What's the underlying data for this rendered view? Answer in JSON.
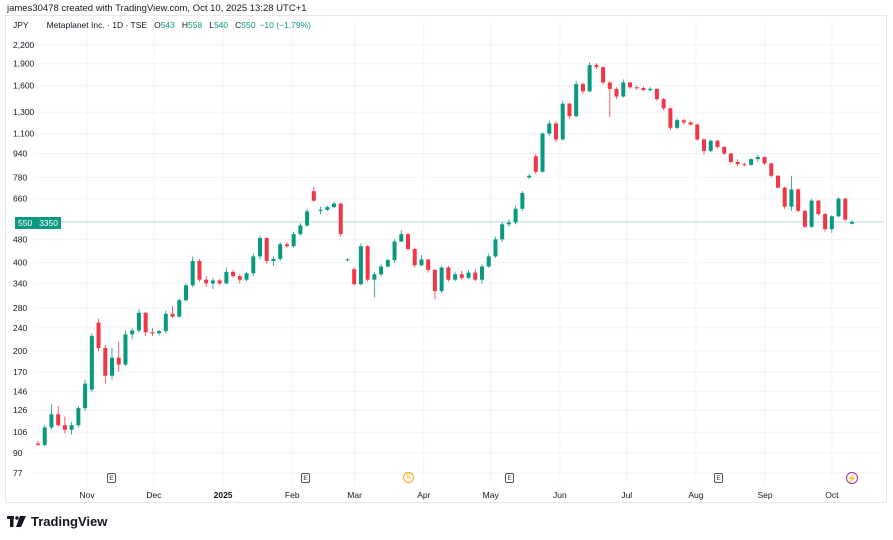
{
  "credit": "james30478 created with TradingView.com, Oct 10, 2025 13:28 UTC+1",
  "legend": {
    "currency": "JPY",
    "symbol": "Metaplanet Inc. · 1D · TSE",
    "o_label": "O",
    "o": "543",
    "h_label": "H",
    "h": "558",
    "l_label": "L",
    "l": "540",
    "c_label": "C",
    "c": "550",
    "change": "−10 (−1.79%)"
  },
  "price_label": {
    "price": "550",
    "countdown": "3350"
  },
  "colors": {
    "up": "#089981",
    "down": "#f23645",
    "grid": "#f0f3fa",
    "last_price_line": "#089981"
  },
  "markers": {
    "earnings_label": "E",
    "split_label": "S",
    "split_icon": "split-coin-icon",
    "now_icon": "lightning-icon"
  },
  "brand": "TradingView",
  "chart_data": {
    "type": "candlestick",
    "x_range": [
      "2024-10-10",
      "2025-10-10"
    ],
    "y_scale": "log",
    "ylim": [
      77,
      2200
    ],
    "grid": true,
    "yticks": [
      2200,
      1900,
      1600,
      1300,
      1100,
      940,
      780,
      660,
      480,
      400,
      340,
      280,
      240,
      200,
      170,
      146,
      126,
      106,
      90,
      77
    ],
    "xticks": [
      {
        "label": "Nov",
        "date": "2024-11-01"
      },
      {
        "label": "Dec",
        "date": "2024-12-01"
      },
      {
        "label": "2025",
        "date": "2025-01-01"
      },
      {
        "label": "Feb",
        "date": "2025-02-01"
      },
      {
        "label": "Mar",
        "date": "2025-03-01"
      },
      {
        "label": "Apr",
        "date": "2025-04-01"
      },
      {
        "label": "May",
        "date": "2025-05-01"
      },
      {
        "label": "Jun",
        "date": "2025-06-01"
      },
      {
        "label": "Jul",
        "date": "2025-07-01"
      },
      {
        "label": "Aug",
        "date": "2025-08-01"
      },
      {
        "label": "Sep",
        "date": "2025-09-01"
      },
      {
        "label": "Oct",
        "date": "2025-10-01"
      }
    ],
    "last_price": 550,
    "candles_ohlc": [
      [
        97,
        99,
        95,
        96
      ],
      [
        96,
        112,
        95,
        110
      ],
      [
        110,
        132,
        108,
        122
      ],
      [
        122,
        130,
        110,
        112
      ],
      [
        112,
        120,
        105,
        108
      ],
      [
        108,
        115,
        104,
        112
      ],
      [
        112,
        130,
        110,
        128
      ],
      [
        128,
        160,
        125,
        155
      ],
      [
        148,
        230,
        145,
        225
      ],
      [
        250,
        258,
        200,
        205
      ],
      [
        205,
        210,
        155,
        165
      ],
      [
        165,
        205,
        160,
        190
      ],
      [
        190,
        215,
        170,
        180
      ],
      [
        180,
        235,
        178,
        228
      ],
      [
        228,
        240,
        220,
        235
      ],
      [
        235,
        278,
        232,
        270
      ],
      [
        270,
        272,
        225,
        232
      ],
      [
        232,
        240,
        225,
        230
      ],
      [
        230,
        236,
        226,
        234
      ],
      [
        234,
        275,
        230,
        268
      ],
      [
        268,
        285,
        260,
        262
      ],
      [
        262,
        302,
        260,
        298
      ],
      [
        298,
        340,
        295,
        335
      ],
      [
        335,
        420,
        330,
        405
      ],
      [
        405,
        412,
        345,
        350
      ],
      [
        350,
        360,
        330,
        340
      ],
      [
        340,
        355,
        325,
        348
      ],
      [
        348,
        352,
        335,
        340
      ],
      [
        340,
        385,
        338,
        372
      ],
      [
        372,
        378,
        355,
        360
      ],
      [
        360,
        365,
        340,
        350
      ],
      [
        350,
        372,
        345,
        368
      ],
      [
        368,
        430,
        360,
        420
      ],
      [
        420,
        495,
        410,
        485
      ],
      [
        485,
        488,
        395,
        405
      ],
      [
        405,
        420,
        390,
        412
      ],
      [
        412,
        470,
        405,
        462
      ],
      [
        462,
        470,
        450,
        455
      ],
      [
        455,
        510,
        450,
        500
      ],
      [
        500,
        545,
        495,
        535
      ],
      [
        535,
        610,
        530,
        598
      ],
      [
        700,
        725,
        645,
        650
      ],
      [
        600,
        620,
        585,
        605
      ],
      [
        605,
        625,
        600,
        618
      ],
      [
        618,
        645,
        612,
        635
      ],
      [
        635,
        640,
        490,
        500
      ],
      [
        410,
        415,
        405,
        410
      ],
      [
        380,
        385,
        335,
        338
      ],
      [
        338,
        465,
        335,
        455
      ],
      [
        455,
        458,
        345,
        350
      ],
      [
        350,
        372,
        305,
        365
      ],
      [
        365,
        395,
        360,
        388
      ],
      [
        388,
        412,
        385,
        408
      ],
      [
        408,
        480,
        400,
        472
      ],
      [
        472,
        515,
        470,
        500
      ],
      [
        500,
        505,
        440,
        445
      ],
      [
        445,
        450,
        385,
        392
      ],
      [
        392,
        425,
        388,
        410
      ],
      [
        410,
        412,
        370,
        378
      ],
      [
        378,
        380,
        300,
        320
      ],
      [
        320,
        390,
        315,
        385
      ],
      [
        385,
        390,
        345,
        350
      ],
      [
        350,
        372,
        345,
        365
      ],
      [
        365,
        375,
        350,
        355
      ],
      [
        355,
        378,
        352,
        370
      ],
      [
        370,
        380,
        345,
        350
      ],
      [
        350,
        395,
        340,
        388
      ],
      [
        388,
        430,
        385,
        420
      ],
      [
        420,
        490,
        415,
        480
      ],
      [
        480,
        550,
        470,
        540
      ],
      [
        540,
        560,
        530,
        548
      ],
      [
        548,
        625,
        540,
        610
      ],
      [
        610,
        700,
        600,
        690
      ],
      [
        780,
        800,
        770,
        790
      ],
      [
        920,
        935,
        800,
        815
      ],
      [
        815,
        1110,
        810,
        1100
      ],
      [
        1100,
        1220,
        1080,
        1190
      ],
      [
        1190,
        1210,
        1030,
        1050
      ],
      [
        1050,
        1420,
        1040,
        1390
      ],
      [
        1390,
        1400,
        1230,
        1260
      ],
      [
        1260,
        1660,
        1250,
        1620
      ],
      [
        1620,
        1640,
        1500,
        1530
      ],
      [
        1530,
        1920,
        1520,
        1880
      ],
      [
        1880,
        1910,
        1820,
        1850
      ],
      [
        1850,
        1860,
        1620,
        1640
      ],
      [
        1640,
        1660,
        1250,
        1560
      ],
      [
        1560,
        1580,
        1440,
        1470
      ],
      [
        1470,
        1680,
        1460,
        1640
      ],
      [
        1640,
        1650,
        1560,
        1580
      ],
      [
        1580,
        1600,
        1550,
        1570
      ],
      [
        1570,
        1590,
        1530,
        1545
      ],
      [
        1545,
        1580,
        1530,
        1560
      ],
      [
        1560,
        1565,
        1420,
        1440
      ],
      [
        1440,
        1450,
        1320,
        1340
      ],
      [
        1340,
        1350,
        1130,
        1150
      ],
      [
        1150,
        1240,
        1140,
        1220
      ],
      [
        1220,
        1235,
        1180,
        1200
      ],
      [
        1200,
        1210,
        1170,
        1180
      ],
      [
        1180,
        1190,
        1040,
        1050
      ],
      [
        1050,
        1060,
        930,
        960
      ],
      [
        960,
        1050,
        950,
        1040
      ],
      [
        1040,
        1045,
        980,
        990
      ],
      [
        990,
        995,
        930,
        940
      ],
      [
        940,
        945,
        870,
        880
      ],
      [
        880,
        900,
        850,
        865
      ],
      [
        865,
        875,
        850,
        860
      ],
      [
        860,
        905,
        855,
        900
      ],
      [
        900,
        930,
        880,
        915
      ],
      [
        915,
        920,
        860,
        870
      ],
      [
        870,
        875,
        780,
        790
      ],
      [
        790,
        795,
        715,
        720
      ],
      [
        720,
        725,
        610,
        620
      ],
      [
        620,
        790,
        600,
        710
      ],
      [
        710,
        715,
        595,
        600
      ],
      [
        600,
        605,
        525,
        530
      ],
      [
        530,
        660,
        525,
        650
      ],
      [
        650,
        655,
        580,
        585
      ],
      [
        585,
        590,
        510,
        520
      ],
      [
        520,
        580,
        505,
        575
      ],
      [
        575,
        670,
        570,
        660
      ],
      [
        660,
        665,
        555,
        560
      ],
      [
        543,
        558,
        540,
        550
      ]
    ]
  }
}
